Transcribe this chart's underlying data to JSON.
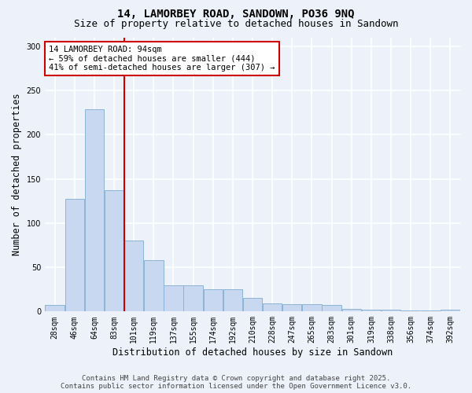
{
  "title_line1": "14, LAMORBEY ROAD, SANDOWN, PO36 9NQ",
  "title_line2": "Size of property relative to detached houses in Sandown",
  "xlabel": "Distribution of detached houses by size in Sandown",
  "ylabel": "Number of detached properties",
  "categories": [
    "28sqm",
    "46sqm",
    "64sqm",
    "83sqm",
    "101sqm",
    "119sqm",
    "137sqm",
    "155sqm",
    "174sqm",
    "192sqm",
    "210sqm",
    "228sqm",
    "247sqm",
    "265sqm",
    "283sqm",
    "301sqm",
    "319sqm",
    "338sqm",
    "356sqm",
    "374sqm",
    "392sqm"
  ],
  "values": [
    7,
    127,
    229,
    137,
    80,
    58,
    30,
    30,
    25,
    25,
    15,
    9,
    8,
    8,
    7,
    3,
    2,
    2,
    1,
    1,
    2
  ],
  "bar_color": "#c8d8f0",
  "bar_edge_color": "#8ab4d8",
  "vline_index": 3.5,
  "vline_color": "#cc0000",
  "annotation_text": "14 LAMORBEY ROAD: 94sqm\n← 59% of detached houses are smaller (444)\n41% of semi-detached houses are larger (307) →",
  "annotation_box_color": "#ffffff",
  "annotation_box_edge_color": "#cc0000",
  "ylim": [
    0,
    310
  ],
  "yticks": [
    0,
    50,
    100,
    150,
    200,
    250,
    300
  ],
  "background_color": "#edf1f9",
  "grid_color": "#ffffff",
  "footer_line1": "Contains HM Land Registry data © Crown copyright and database right 2025.",
  "footer_line2": "Contains public sector information licensed under the Open Government Licence v3.0.",
  "title_fontsize": 10,
  "subtitle_fontsize": 9,
  "axis_label_fontsize": 8.5,
  "tick_fontsize": 7,
  "annotation_fontsize": 7.5,
  "footer_fontsize": 6.5
}
